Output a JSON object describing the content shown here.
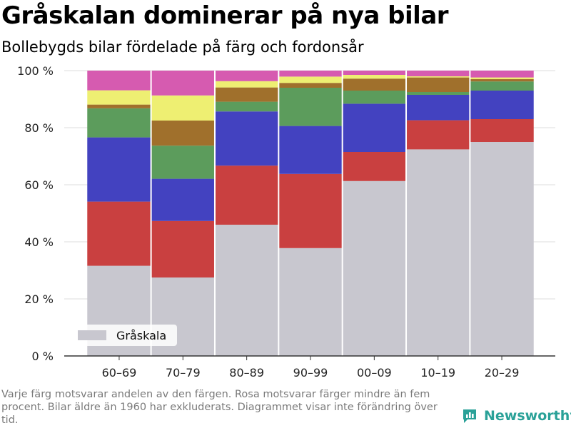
{
  "header": {
    "title": "Gråskalan dominerar på nya bilar",
    "subtitle": "Bollebygds bilar fördelade på färg och fordonsår"
  },
  "footnote": "Varje färg motsvarar andelen av den färgen. Rosa motsvarar färger mindre än fem procent. Bilar äldre än 1960 har exkluderats. Diagrammet visar inte förändring över tid.",
  "brand": {
    "name": "Newsworthy",
    "color": "#2aa198"
  },
  "chart_data": {
    "type": "bar",
    "stacked": true,
    "categories": [
      "60–69",
      "70–79",
      "80–89",
      "90–99",
      "00–09",
      "10–19",
      "20–29"
    ],
    "ylim": [
      0,
      100
    ],
    "yticks": [
      0,
      20,
      40,
      60,
      80,
      100
    ],
    "ytick_labels": [
      "0 %",
      "20 %",
      "40 %",
      "60 %",
      "80 %",
      "100 %"
    ],
    "grid": true,
    "legend": {
      "position": "bottom-left",
      "entries": [
        "Gråskala"
      ]
    },
    "series": [
      {
        "name": "Gråskala",
        "color": "#c8c7cf",
        "values": [
          31.6,
          27.5,
          46.0,
          37.8,
          61.3,
          72.4,
          75.0
        ]
      },
      {
        "color": "#c94040",
        "values": [
          22.5,
          19.8,
          20.7,
          26.0,
          10.2,
          10.2,
          8.0
        ]
      },
      {
        "color": "#4342c0",
        "values": [
          22.5,
          14.8,
          19.0,
          16.8,
          16.9,
          8.9,
          10.0
        ]
      },
      {
        "color": "#5c9c5c",
        "values": [
          10.2,
          11.6,
          3.4,
          13.4,
          4.6,
          1.0,
          3.2
        ]
      },
      {
        "color": "#a0702c",
        "values": [
          1.3,
          8.8,
          5.0,
          1.7,
          4.2,
          5.1,
          0.8
        ]
      },
      {
        "color": "#eeef72",
        "values": [
          5.0,
          8.8,
          2.2,
          2.2,
          1.3,
          0.4,
          0.6
        ]
      },
      {
        "color": "#d65bb0",
        "values": [
          6.9,
          8.7,
          3.7,
          2.1,
          1.5,
          2.0,
          2.4
        ]
      }
    ]
  }
}
